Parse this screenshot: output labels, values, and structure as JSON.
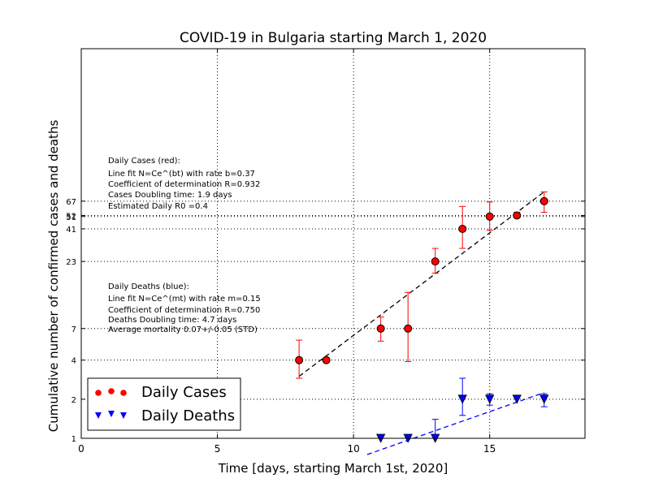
{
  "chart_data": {
    "type": "scatter",
    "title": "COVID-19 in Bulgaria starting March 1, 2020",
    "xlabel": "Time [days, starting March 1st, 2020]",
    "ylabel": "Cumulative number of confirmed cases and deaths",
    "x_ticks": [
      "0",
      "5",
      "10",
      "15"
    ],
    "y_ticks": [
      "1",
      "2",
      "4",
      "7",
      "23",
      "41",
      "51",
      "52",
      "67"
    ],
    "xlim": [
      0,
      18.5
    ],
    "ylim_log": [
      1,
      1000
    ],
    "y_scale": "log",
    "grid": true,
    "legend_position": "lower-left",
    "legend": [
      {
        "label": "Daily Cases",
        "marker": "circle",
        "color": "#ff0000"
      },
      {
        "label": "Daily Deaths",
        "marker": "triangle-down",
        "color": "#0000ff"
      }
    ],
    "series": [
      {
        "name": "Daily Cases",
        "color": "#ff0000",
        "x": [
          8,
          9,
          11,
          12,
          13,
          14,
          15,
          16,
          17
        ],
        "y": [
          4,
          4,
          7,
          7,
          23,
          41,
          51,
          52,
          67
        ],
        "err_low": [
          2.9,
          4,
          5.6,
          3.9,
          18.7,
          29,
          40,
          50,
          55
        ],
        "err_high": [
          5.7,
          4,
          8.6,
          13.3,
          29,
          61,
          66,
          55,
          79
        ]
      },
      {
        "name": "Daily Deaths",
        "color": "#0000ff",
        "x": [
          11,
          12,
          13,
          14,
          15,
          16,
          17
        ],
        "y": [
          1,
          1,
          1,
          2,
          2,
          2,
          2
        ],
        "err_low": [
          1,
          1,
          0.85,
          1.5,
          1.8,
          2,
          1.75
        ],
        "err_high": [
          1,
          1,
          1.4,
          2.9,
          2.2,
          2,
          2.2
        ]
      }
    ],
    "fit_lines": [
      {
        "color": "#000000",
        "style": "dashed",
        "x": [
          8,
          17
        ],
        "y": [
          3.0,
          79
        ]
      },
      {
        "color": "#0000ff",
        "style": "dashed",
        "x": [
          10.5,
          17
        ],
        "y": [
          0.75,
          2.25
        ]
      }
    ],
    "annotations": {
      "cases": [
        "Daily Cases (red):",
        "Line fit N=Ce^(bt) with rate b=0.37",
        "Coefficient of determination R=0.932",
        "Cases Doubling time: 1.9 days",
        "Estimated Daily R0 =0.4"
      ],
      "deaths": [
        "Daily Deaths (blue):",
        "Line fit N=Ce^(mt) with rate m=0.15",
        "Coefficient of determination R=0.750",
        "Deaths Doubling time: 4.7 days",
        "Average mortality 0.07+/-0.05 (STD)"
      ]
    }
  }
}
